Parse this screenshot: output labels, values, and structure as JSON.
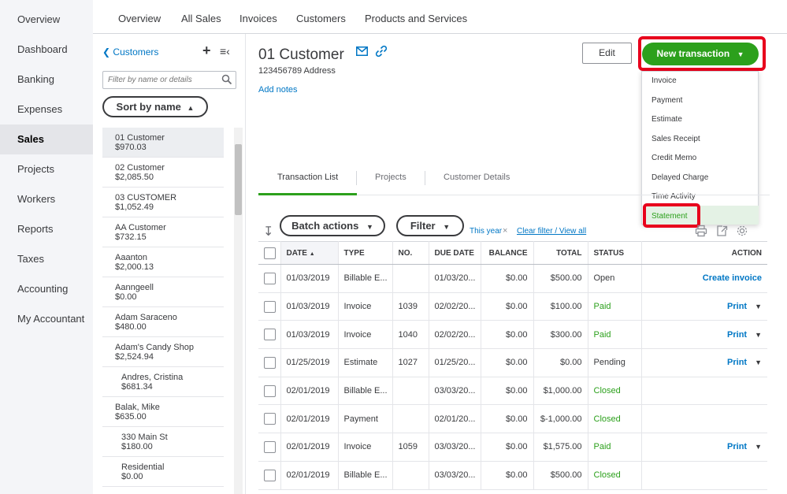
{
  "leftnav": {
    "items": [
      "Overview",
      "Dashboard",
      "Banking",
      "Expenses",
      "Sales",
      "Projects",
      "Workers",
      "Reports",
      "Taxes",
      "Accounting",
      "My Accountant"
    ],
    "active": "Sales"
  },
  "toptabs": [
    "Overview",
    "All Sales",
    "Invoices",
    "Customers",
    "Products and Services"
  ],
  "custpanel": {
    "back_label": "Customers",
    "filter_placeholder": "Filter by name or details",
    "sort_label": "Sort by name"
  },
  "customers": [
    {
      "name": "01 Customer",
      "balance": "$970.03"
    },
    {
      "name": "02 Customer",
      "balance": "$2,085.50"
    },
    {
      "name": "03 CUSTOMER",
      "balance": "$1,052.49"
    },
    {
      "name": "AA Customer",
      "balance": "$732.15"
    },
    {
      "name": "Aaanton",
      "balance": "$2,000.13"
    },
    {
      "name": "Aanngeell",
      "balance": "$0.00"
    },
    {
      "name": "Adam Saraceno",
      "balance": "$480.00"
    },
    {
      "name": "Adam's Candy Shop",
      "balance": "$2,524.94"
    },
    {
      "name": "Andres, Cristina",
      "balance": "$681.34"
    },
    {
      "name": "Balak, Mike",
      "balance": "$635.00"
    },
    {
      "name": "330 Main St",
      "balance": "$180.00"
    },
    {
      "name": "Residential",
      "balance": "$0.00"
    }
  ],
  "header": {
    "customer_name": "01 Customer",
    "address": "123456789 Address",
    "add_notes": "Add notes",
    "edit_label": "Edit",
    "new_transaction_label": "New transaction"
  },
  "dropdown": {
    "items": [
      "Invoice",
      "Payment",
      "Estimate",
      "Sales Receipt",
      "Credit Memo",
      "Delayed Charge",
      "Time Activity",
      "Statement"
    ]
  },
  "subtabs": [
    "Transaction List",
    "Projects",
    "Customer Details"
  ],
  "toolbar": {
    "batch_label": "Batch actions",
    "filter_label": "Filter",
    "this_year": "This year",
    "clear_filter": "Clear filter / View all"
  },
  "table": {
    "headers": [
      "DATE",
      "TYPE",
      "NO.",
      "DUE DATE",
      "BALANCE",
      "TOTAL",
      "STATUS",
      "ACTION"
    ],
    "rows": [
      {
        "date": "01/03/2019",
        "type": "Billable E...",
        "no": "",
        "due": "01/03/20...",
        "balance": "$0.00",
        "total": "$500.00",
        "status": "Open",
        "action": "Create invoice"
      },
      {
        "date": "01/03/2019",
        "type": "Invoice",
        "no": "1039",
        "due": "02/02/20...",
        "balance": "$0.00",
        "total": "$100.00",
        "status": "Paid",
        "action": "Print"
      },
      {
        "date": "01/03/2019",
        "type": "Invoice",
        "no": "1040",
        "due": "02/02/20...",
        "balance": "$0.00",
        "total": "$300.00",
        "status": "Paid",
        "action": "Print"
      },
      {
        "date": "01/25/2019",
        "type": "Estimate",
        "no": "1027",
        "due": "01/25/20...",
        "balance": "$0.00",
        "total": "$0.00",
        "status": "Pending",
        "action": "Print"
      },
      {
        "date": "02/01/2019",
        "type": "Billable E...",
        "no": "",
        "due": "03/03/20...",
        "balance": "$0.00",
        "total": "$1,000.00",
        "status": "Closed",
        "action": ""
      },
      {
        "date": "02/01/2019",
        "type": "Payment",
        "no": "",
        "due": "02/01/20...",
        "balance": "$0.00",
        "total": "$-1,000.00",
        "status": "Closed",
        "action": ""
      },
      {
        "date": "02/01/2019",
        "type": "Invoice",
        "no": "1059",
        "due": "03/03/20...",
        "balance": "$0.00",
        "total": "$1,575.00",
        "status": "Paid",
        "action": "Print"
      },
      {
        "date": "02/01/2019",
        "type": "Billable E...",
        "no": "",
        "due": "03/03/20...",
        "balance": "$0.00",
        "total": "$500.00",
        "status": "Closed",
        "action": ""
      }
    ]
  },
  "colors": {
    "accent_green": "#2ca01c",
    "link_blue": "#0077c5",
    "highlight_red": "#e8001c"
  }
}
